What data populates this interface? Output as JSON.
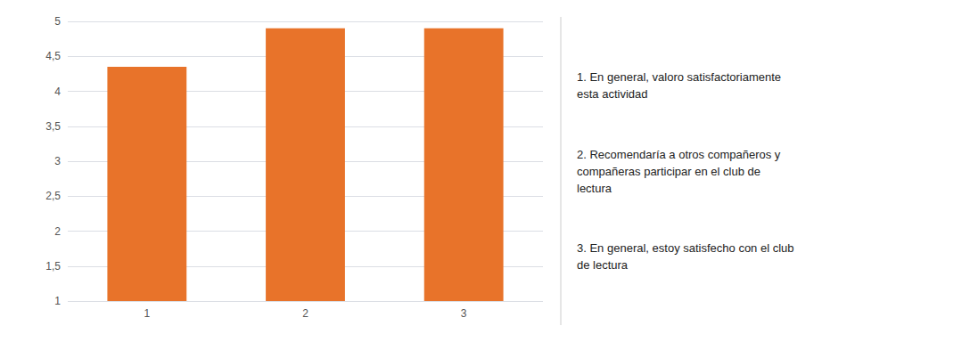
{
  "chart_data": {
    "type": "bar",
    "categories": [
      "1",
      "2",
      "3"
    ],
    "values": [
      4.35,
      4.9,
      4.9
    ],
    "color": "#E8732A",
    "ylim": [
      1,
      5
    ],
    "yticks": [
      1,
      {
        "value": 1.5,
        "label": "1,5"
      },
      2,
      {
        "value": 2.5,
        "label": "2,5"
      },
      3,
      {
        "value": 3.5,
        "label": "3,5"
      },
      4,
      {
        "value": 4.5,
        "label": "4,5"
      },
      5
    ],
    "grid": true,
    "annotations": [
      "1. En general, valoro satisfactoriamente\nesta actividad",
      "2. Recomendaría a otros compañeros y\ncompañeras participar en el club de\nlectura",
      "3. En general, estoy satisfecho con el club\nde lectura"
    ]
  }
}
